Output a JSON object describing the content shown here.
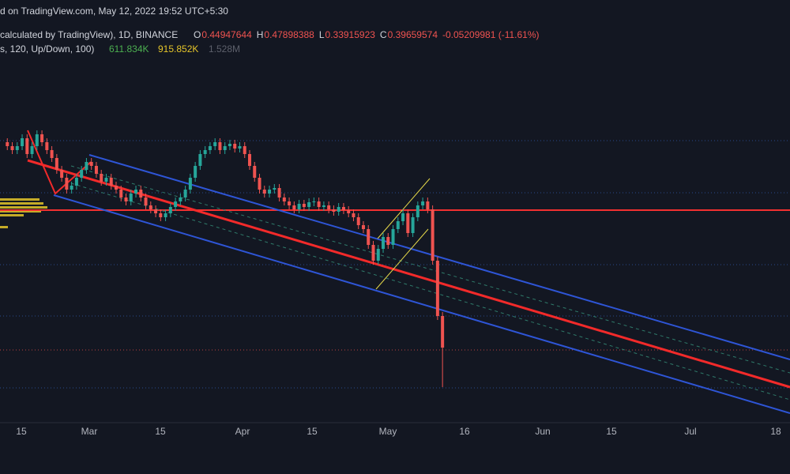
{
  "header": {
    "source": "d on TradingView.com, May 12, 2022 19:52 UTC+5:30",
    "symbol": "calculated by TradingView), 1D, BINANCE",
    "ohlc": [
      {
        "key": "O",
        "value": "0.44947644"
      },
      {
        "key": "H",
        "value": "0.47898388"
      },
      {
        "key": "L",
        "value": "0.33915923"
      },
      {
        "key": "C",
        "value": "0.39659574"
      }
    ],
    "change": "-0.05209981 (-11.61%)",
    "indicator": "s, 120, Up/Down, 100)",
    "indicator_values": [
      "611.834K",
      "915.852K",
      "1.528M"
    ]
  },
  "x_axis": {
    "labels": [
      "15",
      "Mar",
      "15",
      "Apr",
      "15",
      "May",
      "16",
      "Jun",
      "15",
      "Jul",
      "18"
    ]
  }
}
